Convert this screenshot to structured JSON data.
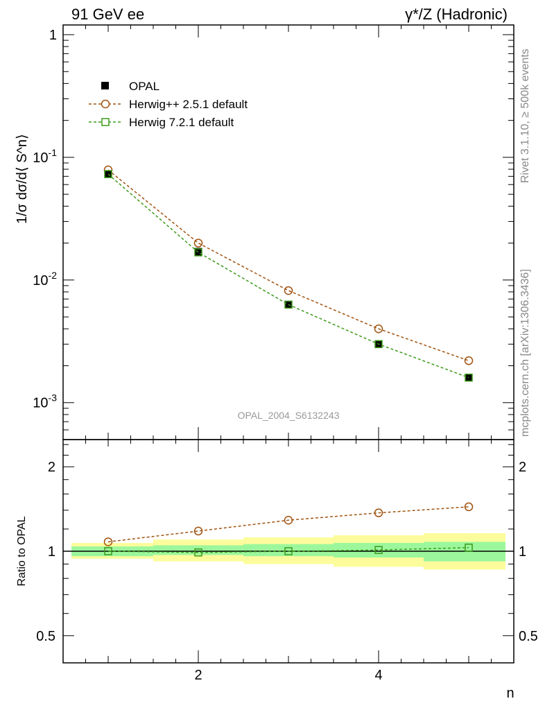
{
  "header": {
    "left_title": "91 GeV ee",
    "right_title_symbol": "γ*/Z",
    "right_title_rest": " (Hadronic)"
  },
  "side_text": {
    "upper": "Rivet 3.1.10, ≥ 500k events",
    "lower": "mcplots.cern.ch [arXiv:1306.3436]"
  },
  "watermark": "OPAL_2004_S6132243",
  "colors": {
    "data": "#000000",
    "herwigpp": "#a0520f",
    "herwig7": "#3c9a1a",
    "band_inner": "#9cf79c",
    "band_outer": "#fcfc9c",
    "axis": "#000000",
    "side_text": "#888888"
  },
  "chart_data": [
    {
      "type": "line",
      "panel": "main",
      "ylabel": "1/σ dσ/d⟨ S^n⟩",
      "yscale": "log",
      "ylim": [
        0.0005,
        1.2
      ],
      "xlim": [
        0.5,
        5.5
      ],
      "ytick_labels": [
        "1",
        "10^-1",
        "10^-2",
        "10^-3"
      ],
      "legend_position": "top-left",
      "x": [
        1,
        2,
        3,
        4,
        5
      ],
      "series": [
        {
          "name": "OPAL",
          "style": "data",
          "values": [
            0.073,
            0.017,
            0.0063,
            0.003,
            0.0016
          ]
        },
        {
          "name": "Herwig++ 2.5.1 default",
          "style": "circle",
          "values": [
            0.079,
            0.02,
            0.0082,
            0.004,
            0.0022
          ]
        },
        {
          "name": "Herwig 7.2.1 default",
          "style": "square",
          "values": [
            0.073,
            0.0168,
            0.0063,
            0.003,
            0.0016
          ]
        }
      ]
    },
    {
      "type": "line",
      "panel": "ratio",
      "ylabel": "Ratio to OPAL",
      "xlabel": "n",
      "yscale": "log",
      "ylim": [
        0.4,
        2.5
      ],
      "xlim": [
        0.5,
        5.5
      ],
      "xtick_labels": [
        "2",
        "4"
      ],
      "ytick_labels": [
        "2",
        "1",
        "0.5"
      ],
      "x": [
        1,
        2,
        3,
        4,
        5
      ],
      "bands": {
        "inner": [
          [
            0.96,
            1.04
          ],
          [
            0.97,
            1.05
          ],
          [
            0.96,
            1.06
          ],
          [
            0.95,
            1.07
          ],
          [
            0.92,
            1.08
          ]
        ],
        "outer": [
          [
            0.94,
            1.07
          ],
          [
            0.92,
            1.1
          ],
          [
            0.9,
            1.12
          ],
          [
            0.88,
            1.14
          ],
          [
            0.86,
            1.16
          ]
        ]
      },
      "series": [
        {
          "name": "Herwig++ 2.5.1 default",
          "style": "circle",
          "values": [
            1.08,
            1.18,
            1.29,
            1.37,
            1.44
          ]
        },
        {
          "name": "Herwig 7.2.1 default",
          "style": "square",
          "values": [
            1.0,
            0.99,
            1.0,
            1.01,
            1.03
          ]
        }
      ]
    }
  ]
}
